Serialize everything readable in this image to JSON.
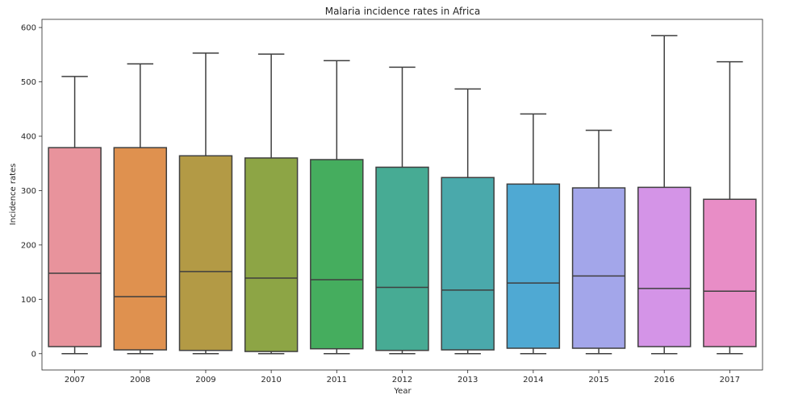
{
  "chart_data": {
    "type": "box",
    "title": "Malaria incidence rates in Africa",
    "xlabel": "Year",
    "ylabel": "Incidence rates",
    "ylim": [
      -30,
      615
    ],
    "yticks": [
      0,
      100,
      200,
      300,
      400,
      500,
      600
    ],
    "grid": false,
    "legend": "none",
    "categories": [
      "2007",
      "2008",
      "2009",
      "2010",
      "2011",
      "2012",
      "2013",
      "2014",
      "2015",
      "2016",
      "2017"
    ],
    "series": [
      {
        "whisker_low": 0,
        "q1": 13,
        "median": 148,
        "q3": 379,
        "whisker_high": 510,
        "color": "#e8939c"
      },
      {
        "whisker_low": 0,
        "q1": 7,
        "median": 105,
        "q3": 379,
        "whisker_high": 533,
        "color": "#df914f"
      },
      {
        "whisker_low": 0,
        "q1": 6,
        "median": 151,
        "q3": 364,
        "whisker_high": 553,
        "color": "#b39a45"
      },
      {
        "whisker_low": 0,
        "q1": 4,
        "median": 139,
        "q3": 360,
        "whisker_high": 551,
        "color": "#8da545"
      },
      {
        "whisker_low": 0,
        "q1": 9,
        "median": 136,
        "q3": 357,
        "whisker_high": 539,
        "color": "#45ad5e"
      },
      {
        "whisker_low": 0,
        "q1": 6,
        "median": 122,
        "q3": 343,
        "whisker_high": 527,
        "color": "#47ab94"
      },
      {
        "whisker_low": 0,
        "q1": 7,
        "median": 117,
        "q3": 324,
        "whisker_high": 487,
        "color": "#4aa9ab"
      },
      {
        "whisker_low": 0,
        "q1": 10,
        "median": 130,
        "q3": 312,
        "whisker_high": 441,
        "color": "#4fa9d3"
      },
      {
        "whisker_low": 0,
        "q1": 10,
        "median": 143,
        "q3": 305,
        "whisker_high": 411,
        "color": "#a3a6ea"
      },
      {
        "whisker_low": 0,
        "q1": 13,
        "median": 120,
        "q3": 306,
        "whisker_high": 585,
        "color": "#d494e7"
      },
      {
        "whisker_low": 0,
        "q1": 13,
        "median": 115,
        "q3": 284,
        "whisker_high": 537,
        "color": "#e88dc6"
      }
    ]
  }
}
